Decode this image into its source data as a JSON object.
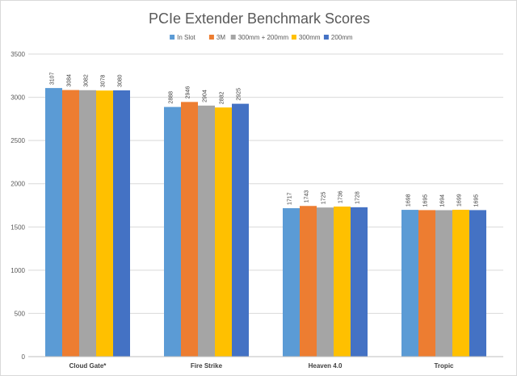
{
  "chart_data": {
    "type": "bar",
    "title": "PCIe Extender Benchmark Scores",
    "xlabel": "",
    "ylabel": "",
    "ylim": [
      0,
      3500
    ],
    "yticks": [
      0,
      500,
      1000,
      1500,
      2000,
      2500,
      3000,
      3500
    ],
    "grid": true,
    "legend_position": "top",
    "categories": [
      "Cloud Gate*",
      "Fire Strike",
      "Heaven 4.0",
      "Tropic"
    ],
    "series": [
      {
        "name": "In Slot",
        "color": "#5b9bd5",
        "values": [
          3107,
          2888,
          1717,
          1698
        ]
      },
      {
        "name": "3M",
        "color": "#ed7d31",
        "values": [
          3084,
          2946,
          1743,
          1695
        ]
      },
      {
        "name": "300mm + 200mm",
        "color": "#a5a5a5",
        "values": [
          3082,
          2904,
          1725,
          1694
        ]
      },
      {
        "name": "300mm",
        "color": "#ffc000",
        "values": [
          3078,
          2882,
          1736,
          1699
        ]
      },
      {
        "name": "200mm",
        "color": "#4472c4",
        "values": [
          3080,
          2925,
          1728,
          1695
        ]
      }
    ]
  }
}
